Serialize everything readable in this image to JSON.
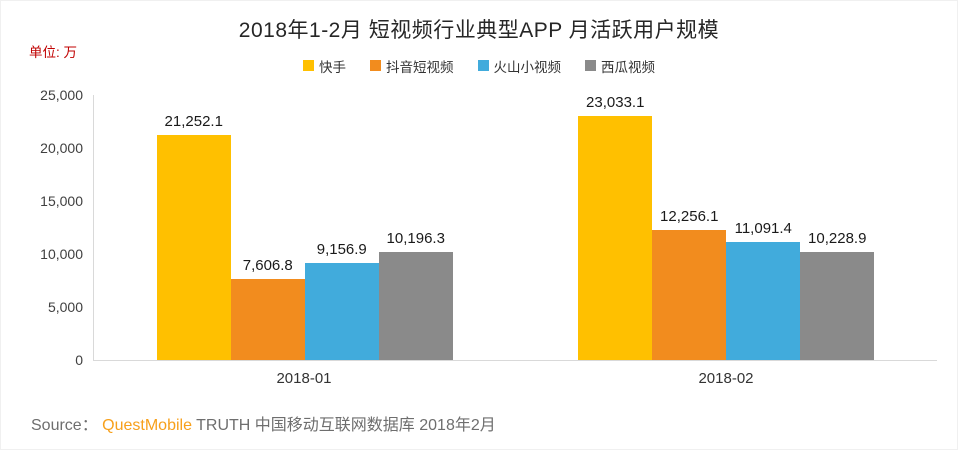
{
  "title": "2018年1-2月 短视频行业典型APP 月活跃用户规模",
  "unit_label": "单位: 万",
  "source": {
    "prefix": "Source： ",
    "brand": "QuestMobile",
    "suffix": " TRUTH 中国移动互联网数据库 2018年2月",
    "brand_color": "#f7a01b"
  },
  "chart_data": {
    "type": "bar",
    "title": "2018年1-2月 短视频行业典型APP 月活跃用户规模",
    "xlabel": "",
    "ylabel": "单位: 万",
    "categories": [
      "2018-01",
      "2018-02"
    ],
    "series": [
      {
        "id": "kuaishou",
        "name": "快手",
        "color": "#FFC000",
        "values": [
          21252.1,
          23033.1
        ],
        "labels": [
          "21,252.1",
          "23,033.1"
        ]
      },
      {
        "id": "douyin",
        "name": "抖音短视频",
        "color": "#F28C1E",
        "values": [
          7606.8,
          12256.1
        ],
        "labels": [
          "7,606.8",
          "12,256.1"
        ]
      },
      {
        "id": "huoshan",
        "name": "火山小视频",
        "color": "#41ABDC",
        "values": [
          9156.9,
          11091.4
        ],
        "labels": [
          "9,156.9",
          "11,091.4"
        ]
      },
      {
        "id": "xigua",
        "name": "西瓜视频",
        "color": "#8A8A8A",
        "values": [
          10196.3,
          10228.9
        ],
        "labels": [
          "10,196.3",
          "10,228.9"
        ]
      }
    ],
    "ylim": [
      0,
      25000
    ],
    "ytick_interval": 5000,
    "yticks": [
      "25,000",
      "20,000",
      "15,000",
      "10,000",
      "5,000",
      "0"
    ],
    "grid": false,
    "legend_position": "top",
    "value_labels_shown": true
  }
}
